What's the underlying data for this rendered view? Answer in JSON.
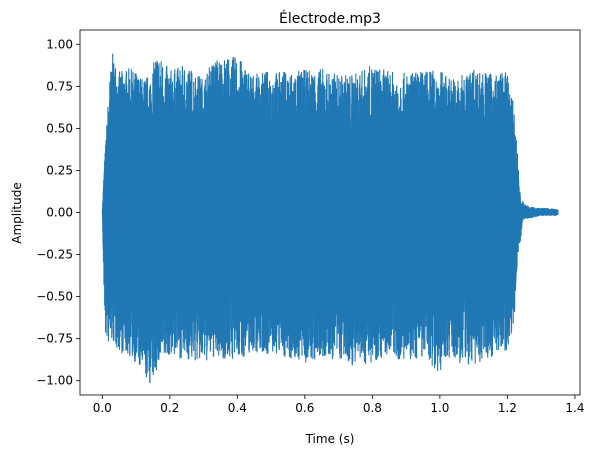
{
  "chart_data": {
    "type": "line",
    "title": "Électrode.mp3",
    "xlabel": "Time (s)",
    "ylabel": "Amplitude",
    "xlim": [
      -0.066,
      1.415
    ],
    "ylim": [
      -1.085,
      1.085
    ],
    "x_ticks": [
      0.0,
      0.2,
      0.4,
      0.6,
      0.8,
      1.0,
      1.2,
      1.4
    ],
    "x_tick_labels": [
      "0.0",
      "0.2",
      "0.4",
      "0.6",
      "0.8",
      "1.0",
      "1.2",
      "1.4"
    ],
    "y_ticks": [
      1.0,
      0.75,
      0.5,
      0.25,
      0.0,
      -0.25,
      -0.5,
      -0.75,
      -1.0
    ],
    "y_tick_labels": [
      "1.00",
      "0.75",
      "0.50",
      "0.25",
      "0.00",
      "−0.25",
      "−0.50",
      "−0.75",
      "−1.00"
    ],
    "grid": false,
    "line_color": "#1f77b4",
    "series": [
      {
        "x": [
          0.0,
          0.005,
          0.01,
          0.02,
          0.03,
          0.05,
          0.08,
          0.1,
          0.12,
          0.145,
          0.16,
          0.2,
          0.25,
          0.3,
          0.33,
          0.4,
          0.45,
          0.5,
          0.52,
          0.6,
          0.65,
          0.7,
          0.75,
          0.8,
          0.85,
          0.9,
          0.95,
          1.0,
          1.02,
          1.05,
          1.1,
          1.15,
          1.2,
          1.22,
          1.23,
          1.24,
          1.245,
          1.25,
          1.28,
          1.3,
          1.35
        ],
        "max": [
          0.0,
          0.25,
          0.42,
          0.76,
          0.95,
          0.84,
          0.86,
          0.84,
          0.8,
          0.83,
          0.96,
          0.85,
          0.88,
          0.8,
          0.92,
          0.93,
          0.82,
          0.85,
          0.84,
          0.85,
          0.86,
          0.82,
          0.83,
          0.88,
          0.84,
          0.83,
          0.85,
          0.85,
          0.82,
          0.8,
          0.86,
          0.83,
          0.84,
          0.62,
          0.35,
          0.05,
          0.07,
          0.05,
          0.03,
          0.03,
          0.02
        ],
        "min": [
          0.0,
          -0.5,
          -0.75,
          -0.8,
          -0.78,
          -0.83,
          -0.86,
          -0.9,
          -0.97,
          -1.04,
          -0.95,
          -0.85,
          -0.88,
          -0.9,
          -0.87,
          -0.88,
          -0.83,
          -0.85,
          -0.85,
          -0.9,
          -0.88,
          -0.88,
          -0.92,
          -0.89,
          -0.85,
          -0.9,
          -0.86,
          -0.96,
          -0.86,
          -0.9,
          -0.92,
          -0.86,
          -0.82,
          -0.65,
          -0.28,
          -0.15,
          -0.05,
          -0.04,
          -0.03,
          -0.02,
          -0.02
        ]
      }
    ]
  }
}
